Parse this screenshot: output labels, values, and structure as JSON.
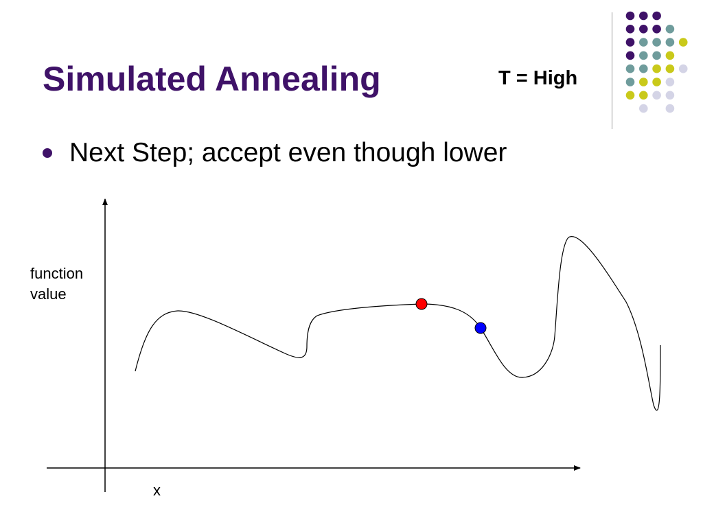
{
  "slide": {
    "title": "Simulated Annealing",
    "temperature_label": "T = High",
    "bullets": [
      "Next Step; accept even though lower"
    ]
  },
  "diagram": {
    "y_axis_label_line1": "function",
    "y_axis_label_line2": "value",
    "x_axis_label": "x",
    "markers": [
      {
        "name": "current point",
        "color": "#ff0000"
      },
      {
        "name": "next step",
        "color": "#0000ff"
      }
    ]
  },
  "colors": {
    "title": "#3f1268",
    "bullet": "#3f1268",
    "dark_purple": "#3f1268",
    "teal": "#6f9c9c",
    "yellow_green": "#c9c91a",
    "light_lavender": "#d4d4e6",
    "curve": "#000000"
  }
}
